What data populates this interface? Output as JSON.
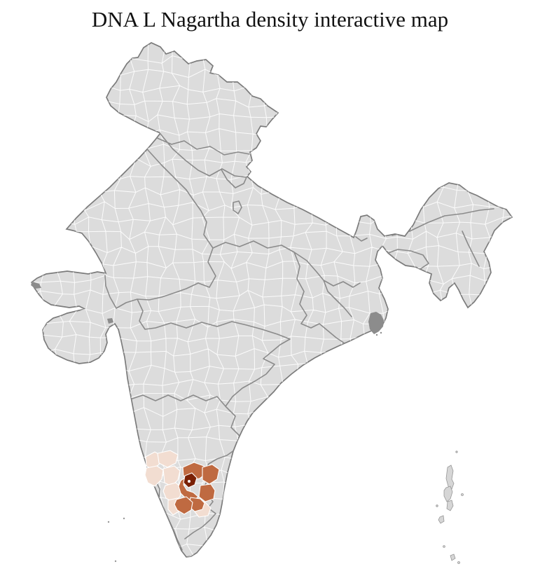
{
  "title": "DNA L Nagartha density interactive map",
  "map": {
    "name": "India district density choropleth",
    "region_focus": "southern India (Karnataka / Bangalore cluster)",
    "colors": {
      "background": "#ffffff",
      "land": "#dcdcdc",
      "district_border": "#ffffff",
      "state_border": "#868686",
      "country_border": "#7b7b7b",
      "delta": "#8c8c8c",
      "island": "#d6d6d6",
      "island_border": "#979797",
      "density_low": "#f2ddd1",
      "density_medium": "#bf6a41",
      "density_high": "#7a2105",
      "city_marker": "#ffffff"
    },
    "density_levels": [
      {
        "id": "low",
        "color": "#f2ddd1"
      },
      {
        "id": "medium",
        "color": "#bf6a41"
      },
      {
        "id": "high",
        "color": "#7a2105"
      }
    ],
    "highlighted_cluster": {
      "region": "southern-india",
      "low_density_districts": 7,
      "medium_density_districts": 6,
      "high_density_districts": 1,
      "city_marker_present": true
    }
  }
}
